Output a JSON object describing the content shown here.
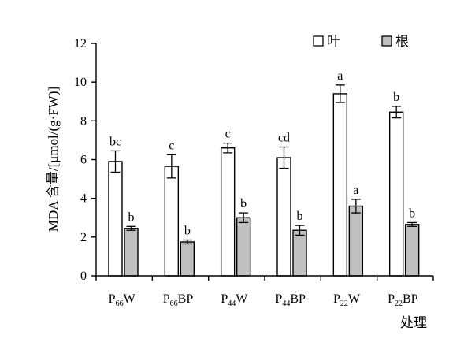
{
  "chart_data": {
    "type": "bar",
    "title": "",
    "xlabel": "处理",
    "ylabel": "MDA 含量/[μmol/(g·FW)]",
    "ylim": [
      0,
      12
    ],
    "yticks": [
      0,
      2,
      4,
      6,
      8,
      10,
      12
    ],
    "grid": false,
    "legend_position": "top-right",
    "categories": [
      {
        "base": "P",
        "sub": "66",
        "suffix": "W"
      },
      {
        "base": "P",
        "sub": "66",
        "suffix": "BP"
      },
      {
        "base": "P",
        "sub": "44",
        "suffix": "W"
      },
      {
        "base": "P",
        "sub": "44",
        "suffix": "BP"
      },
      {
        "base": "P",
        "sub": "22",
        "suffix": "W"
      },
      {
        "base": "P",
        "sub": "22",
        "suffix": "BP"
      }
    ],
    "series": [
      {
        "name": "叶",
        "color": "#ffffff",
        "values": [
          5.9,
          5.65,
          6.6,
          6.1,
          9.4,
          8.45
        ],
        "errors": [
          0.55,
          0.6,
          0.25,
          0.55,
          0.45,
          0.3
        ],
        "labels": [
          "bc",
          "c",
          "c",
          "cd",
          "a",
          "b"
        ]
      },
      {
        "name": "根",
        "color": "#bfbfbf",
        "values": [
          2.45,
          1.75,
          3.0,
          2.35,
          3.6,
          2.65
        ],
        "errors": [
          0.1,
          0.1,
          0.25,
          0.25,
          0.35,
          0.1
        ],
        "labels": [
          "b",
          "b",
          "b",
          "b",
          "a",
          "b"
        ]
      }
    ]
  }
}
